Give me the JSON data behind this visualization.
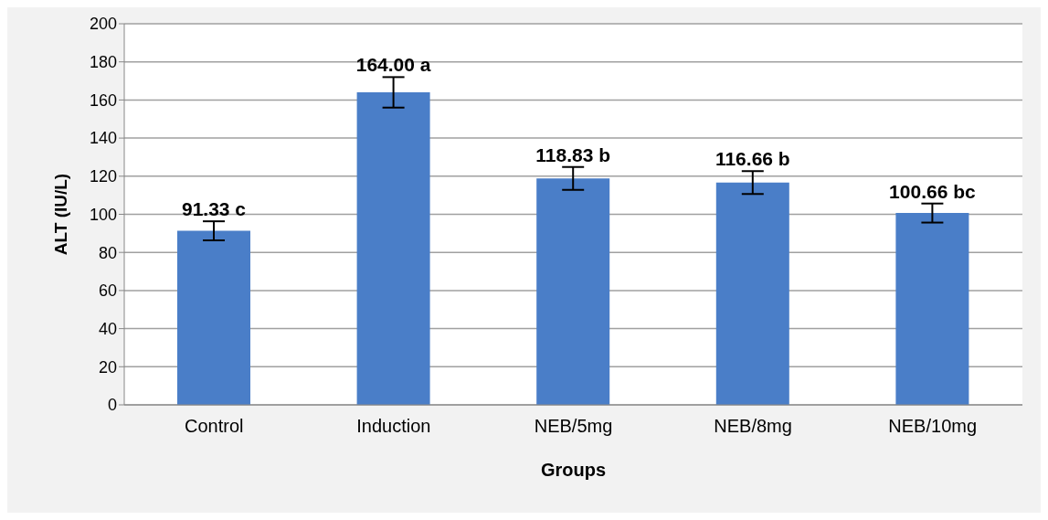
{
  "chart_data": {
    "type": "bar",
    "xlabel": "Groups",
    "ylabel": "ALT (IU/L)",
    "categories": [
      "Control",
      "Induction",
      "NEB/5mg",
      "NEB/8mg",
      "NEB/10mg"
    ],
    "values": [
      91.33,
      164.0,
      118.83,
      116.66,
      100.66
    ],
    "errors": [
      5,
      8,
      6,
      6,
      5
    ],
    "value_labels": [
      "91.33 c",
      "164.00 a",
      "118.83 b",
      "116.66 b",
      "100.66 bc"
    ],
    "color": "#4a7ec8",
    "ylim": [
      0,
      200
    ],
    "yticks": [
      0,
      20,
      40,
      60,
      80,
      100,
      120,
      140,
      160,
      180,
      200
    ],
    "grid": "y"
  }
}
